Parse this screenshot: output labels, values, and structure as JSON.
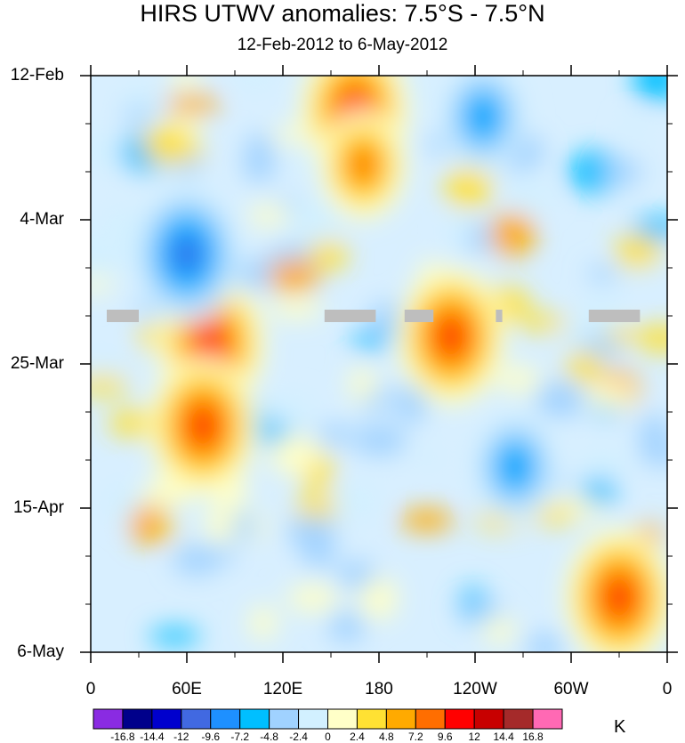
{
  "chart_data": {
    "type": "heatmap",
    "title": "HIRS UTWV anomalies: 7.5°S - 7.5°N",
    "subtitle": "12-Feb-2012 to 6-May-2012",
    "y_ticks": [
      "12-Feb",
      "4-Mar",
      "25-Mar",
      "15-Apr",
      "6-May"
    ],
    "x_ticks": [
      "0",
      "60E",
      "120E",
      "180",
      "120W",
      "60W",
      "0"
    ],
    "colorbar": {
      "unit": "K",
      "levels": [
        "-16.8",
        "-14.4",
        "-12",
        "-9.6",
        "-7.2",
        "-4.8",
        "-2.4",
        "0",
        "2.4",
        "4.8",
        "7.2",
        "9.6",
        "12",
        "14.4",
        "16.8"
      ],
      "colors": [
        "#8a2be2",
        "#00008b",
        "#0000cd",
        "#4169e1",
        "#1e90ff",
        "#00bfff",
        "#a0d2ff",
        "#d2f0ff",
        "#ffffc8",
        "#ffe133",
        "#ffaa00",
        "#ff6e00",
        "#ff0000",
        "#c80000",
        "#a52a2a",
        "#ff69b4"
      ]
    },
    "missing_data_color": "#bebebe",
    "missing_data_segments": [
      {
        "lon_start": 10,
        "lon_end": 30
      },
      {
        "lon_start": 146,
        "lon_end": 178
      },
      {
        "lon_start": 196,
        "lon_end": 214
      },
      {
        "lon_start": 253,
        "lon_end": 257
      },
      {
        "lon_start": 311,
        "lon_end": 343
      }
    ],
    "missing_data_date": "19-Mar",
    "anomaly_centers": [
      {
        "lon": 165,
        "date": "17-Feb",
        "value": 12
      },
      {
        "lon": 170,
        "date": "25-Feb",
        "value": 9.6
      },
      {
        "lon": 225,
        "date": "22-Mar",
        "value": 12
      },
      {
        "lon": 75,
        "date": "23-Mar",
        "value": 12
      },
      {
        "lon": 70,
        "date": "4-Apr",
        "value": 12
      },
      {
        "lon": 330,
        "date": "29-Apr",
        "value": 12
      },
      {
        "lon": 60,
        "date": "10-Mar",
        "value": -12
      },
      {
        "lon": 245,
        "date": "18-Feb",
        "value": -9.6
      },
      {
        "lon": 265,
        "date": "10-Apr",
        "value": -9.6
      }
    ]
  }
}
